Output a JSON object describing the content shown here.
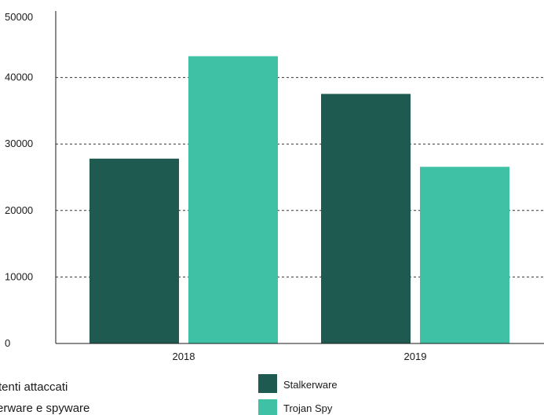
{
  "chart_data": {
    "type": "bar",
    "categories": [
      "2018",
      "2019"
    ],
    "series": [
      {
        "name": "Stalkerware",
        "values": [
          27798,
          37532
        ],
        "color": "#1e5a50"
      },
      {
        "name": "Trojan Spy",
        "values": [
          43202,
          26568
        ],
        "color": "#3fc1a6"
      }
    ],
    "ylim": [
      0,
      50000
    ],
    "yticks": [
      "0",
      "10000",
      "20000",
      "30000",
      "40000",
      "50000"
    ],
    "grid": "dotted horizontal",
    "legend_position": "bottom-right"
  },
  "caption": {
    "line1": "tenti attaccati",
    "line2": "erware e spyware"
  }
}
